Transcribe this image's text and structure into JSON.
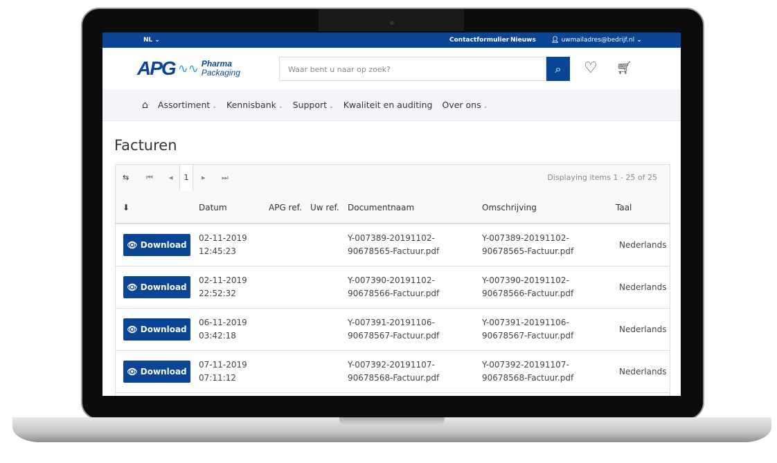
{
  "topbar": {
    "lang": "NL",
    "contact": "Contactformulier",
    "news": "Nieuws",
    "email": "uwmailadres@bedrijf.nl"
  },
  "header": {
    "logo_main": "APG",
    "logo_line1": "Pharma",
    "logo_line2": "Packaging",
    "search_placeholder": "Waar bent u naar op zoek?"
  },
  "nav": [
    "Assortiment",
    "Kennisbank",
    "Support",
    "Kwaliteit en auditing",
    "Over ons"
  ],
  "page": {
    "title": "Facturen"
  },
  "pager": {
    "page": "1",
    "info": "Displaying items 1 - 25 of 25"
  },
  "columns": {
    "datum": "Datum",
    "apg": "APG ref.",
    "uw": "Uw ref.",
    "doc": "Documentnaam",
    "oms": "Omschrijving",
    "taal": "Taal"
  },
  "download_label": "Download",
  "rows": [
    {
      "date": "02-11-2019",
      "time": "12:45:23",
      "doc1": "Y-007389-20191102-",
      "doc2": "90678565-Factuur.pdf",
      "taal": "Nederlands"
    },
    {
      "date": "02-11-2019",
      "time": "22:52:32",
      "doc1": "Y-007390-20191102-",
      "doc2": "90678566-Factuur.pdf",
      "taal": "Nederlands"
    },
    {
      "date": "06-11-2019",
      "time": "03:42:18",
      "doc1": "Y-007391-20191106-",
      "doc2": "90678567-Factuur.pdf",
      "taal": "Nederlands"
    },
    {
      "date": "07-11-2019",
      "time": "07:11:12",
      "doc1": "Y-007392-20191107-",
      "doc2": "90678568-Factuur.pdf",
      "taal": "Nederlands"
    }
  ]
}
